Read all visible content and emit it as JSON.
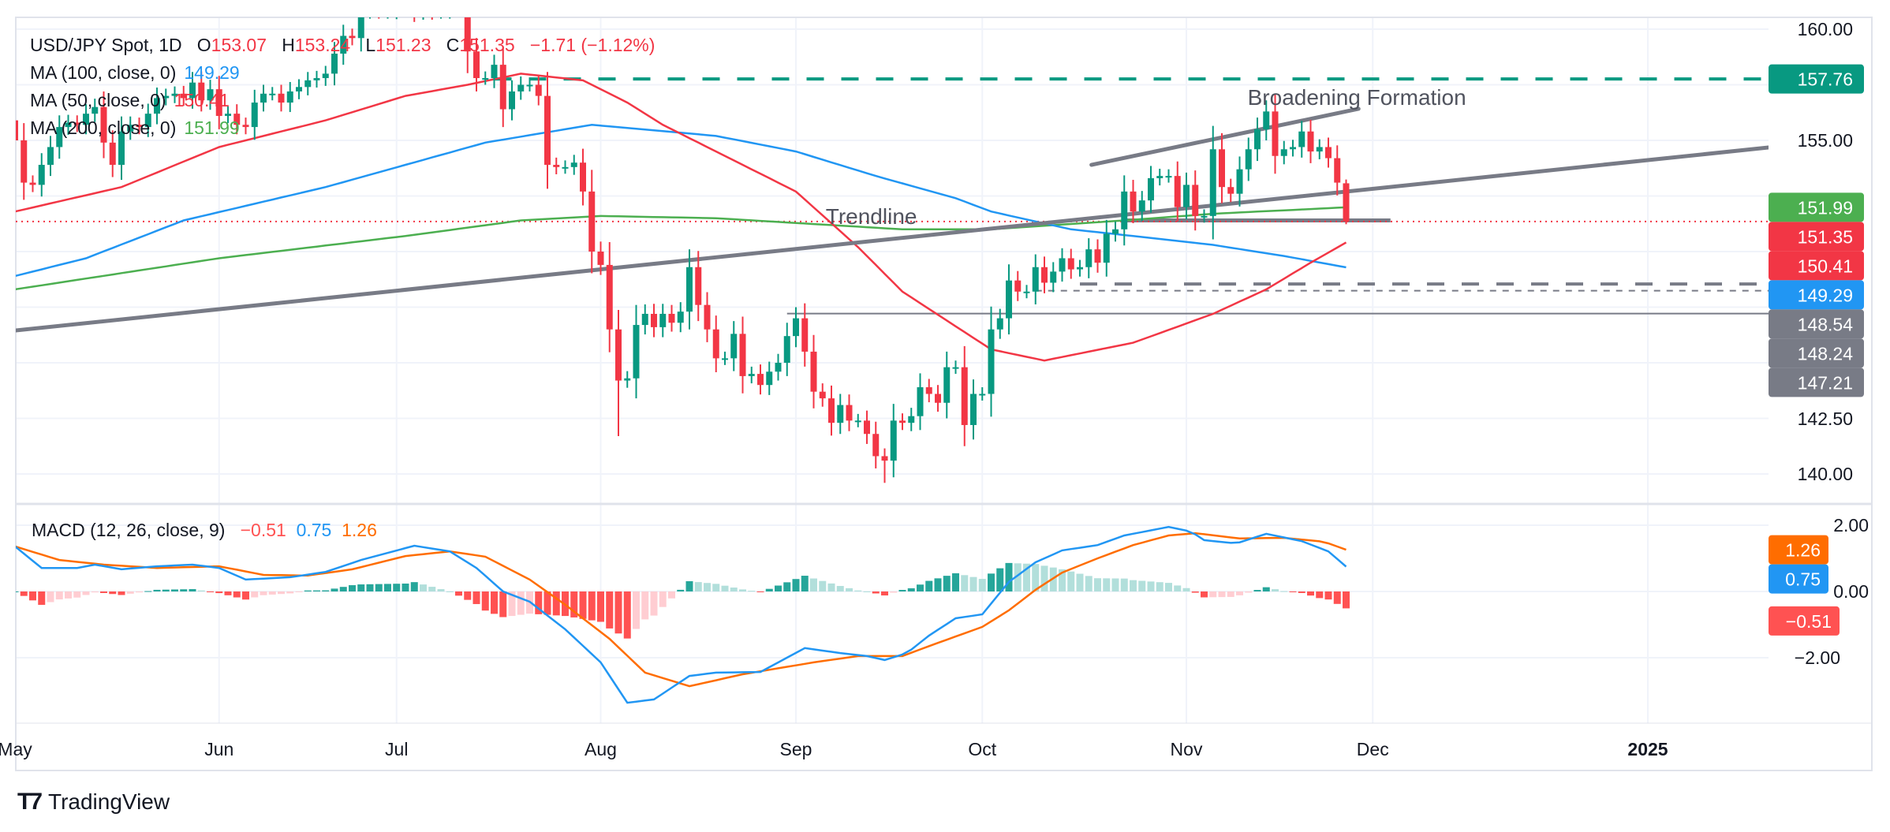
{
  "legend": {
    "symbol": "USD/JPY Spot, 1D",
    "o_label": "O",
    "open": "153.07",
    "h_label": "H",
    "high": "153.24",
    "l_label": "L",
    "low": "151.23",
    "c_label": "C",
    "close": "151.35",
    "change": "−1.71 (−1.12%)",
    "ma": [
      {
        "label": "MA (100, close, 0)",
        "value": "149.29"
      },
      {
        "label": "MA (50, close, 0)",
        "value": "150.41"
      },
      {
        "label": "MA (200, close, 0)",
        "value": "151.99"
      }
    ]
  },
  "macd_legend": {
    "label": "MACD (12, 26, close, 9)",
    "hist": "−0.51",
    "macd": "0.75",
    "signal": "1.26"
  },
  "brand": "TradingView",
  "chart_data": {
    "type": "candlestick",
    "title": "USD/JPY Spot, 1D",
    "colors": {
      "up": "#089981",
      "down": "#f23645",
      "ma50": "#f23645",
      "ma100": "#2196f3",
      "ma200": "#4caf50",
      "macd": "#2196f3",
      "signal": "#ff6d00",
      "drawing": "#787b86",
      "resistance": "#089981"
    },
    "ylim": [
      139.0,
      160.5
    ],
    "first_open": 155.9,
    "last_open": 153.07,
    "closes": [
      155.0,
      153.1,
      153.0,
      153.9,
      154.7,
      155.6,
      155.8,
      155.7,
      156.2,
      156.5,
      154.9,
      153.9,
      155.4,
      155.7,
      155.6,
      156.2,
      156.9,
      157.0,
      157.1,
      156.9,
      157.6,
      156.8,
      157.3,
      156.1,
      156.2,
      155.7,
      155.6,
      156.7,
      157.1,
      157.1,
      156.7,
      157.2,
      157.4,
      157.7,
      157.8,
      158.0,
      158.9,
      159.7,
      159.6,
      160.8,
      160.9,
      160.8,
      160.9,
      161.5,
      161.5,
      160.8,
      161.1,
      160.8,
      160.9,
      161.4,
      161.7,
      159.0,
      157.8,
      157.8,
      158.4,
      156.4,
      157.2,
      157.5,
      157.5,
      157.0,
      153.9,
      153.8,
      153.8,
      154.0,
      152.7,
      150.0,
      149.4,
      146.5,
      144.2,
      144.3,
      146.7,
      147.2,
      146.6,
      147.2,
      146.8,
      147.3,
      149.3,
      147.6,
      146.5,
      145.2,
      145.2,
      146.3,
      144.4,
      144.5,
      144.0,
      144.6,
      145.0,
      146.2,
      147.0,
      145.5,
      143.7,
      143.4,
      142.3,
      143.1,
      142.4,
      142.4,
      141.8,
      140.8,
      140.6,
      142.4,
      142.3,
      142.6,
      143.9,
      143.6,
      143.2,
      144.8,
      144.8,
      142.2,
      143.6,
      143.6,
      146.5,
      147.0,
      148.7,
      148.2,
      148.2,
      149.3,
      148.6,
      149.1,
      149.7,
      149.2,
      149.3,
      150.1,
      149.5,
      150.8,
      151.0,
      152.7,
      151.8,
      152.3,
      153.3,
      153.4,
      153.4,
      152.0,
      153.0,
      151.6,
      151.6,
      154.6,
      152.9,
      152.6,
      153.7,
      154.6,
      155.5,
      156.3,
      154.3,
      154.6,
      154.7,
      155.4,
      154.5,
      154.7,
      154.2,
      153.1,
      151.35
    ],
    "extremes": [
      {
        "i": 0,
        "high": 157.8
      },
      {
        "i": 68,
        "low": 141.7
      },
      {
        "i": 98,
        "low": 139.6
      },
      {
        "i": 150,
        "high": 153.24,
        "low": 151.23
      }
    ],
    "ma50": [
      [
        0,
        151.8
      ],
      [
        12,
        152.9
      ],
      [
        23,
        154.7
      ],
      [
        35,
        155.9
      ],
      [
        44,
        157.0
      ],
      [
        51,
        157.5
      ],
      [
        57,
        158.0
      ],
      [
        64,
        157.7
      ],
      [
        69,
        156.7
      ],
      [
        73,
        155.7
      ],
      [
        88,
        152.7
      ],
      [
        95,
        150.2
      ],
      [
        100,
        148.2
      ],
      [
        110,
        145.6
      ],
      [
        116,
        145.1
      ],
      [
        126,
        145.9
      ],
      [
        135,
        147.2
      ],
      [
        141,
        148.3
      ],
      [
        146,
        149.5
      ],
      [
        150,
        150.41
      ]
    ],
    "ma100": [
      [
        0,
        148.9
      ],
      [
        8,
        149.7
      ],
      [
        19,
        151.4
      ],
      [
        35,
        152.9
      ],
      [
        44,
        153.9
      ],
      [
        53,
        154.9
      ],
      [
        65,
        155.7
      ],
      [
        79,
        155.2
      ],
      [
        88,
        154.5
      ],
      [
        97,
        153.4
      ],
      [
        106,
        152.4
      ],
      [
        110,
        151.8
      ],
      [
        119,
        151.0
      ],
      [
        126,
        150.7
      ],
      [
        135,
        150.3
      ],
      [
        143,
        149.8
      ],
      [
        150,
        149.29
      ]
    ],
    "ma200": [
      [
        0,
        148.3
      ],
      [
        23,
        149.7
      ],
      [
        44,
        150.7
      ],
      [
        57,
        151.4
      ],
      [
        66,
        151.6
      ],
      [
        79,
        151.5
      ],
      [
        100,
        151.0
      ],
      [
        110,
        151.0
      ],
      [
        125,
        151.4
      ],
      [
        135,
        151.7
      ],
      [
        150,
        151.99
      ]
    ],
    "macd": [
      [
        0,
        1.36
      ],
      [
        3,
        0.71
      ],
      [
        7,
        0.71
      ],
      [
        9,
        0.81
      ],
      [
        12,
        0.67
      ],
      [
        16,
        0.76
      ],
      [
        20,
        0.81
      ],
      [
        23,
        0.71
      ],
      [
        26,
        0.36
      ],
      [
        31,
        0.43
      ],
      [
        35,
        0.59
      ],
      [
        39,
        0.95
      ],
      [
        45,
        1.38
      ],
      [
        49,
        1.21
      ],
      [
        52,
        0.71
      ],
      [
        55,
        0.0
      ],
      [
        58,
        -0.31
      ],
      [
        62,
        -1.14
      ],
      [
        66,
        -2.14
      ],
      [
        69,
        -3.36
      ],
      [
        72,
        -3.26
      ],
      [
        76,
        -2.55
      ],
      [
        79,
        -2.45
      ],
      [
        84,
        -2.43
      ],
      [
        89,
        -1.71
      ],
      [
        93,
        -1.86
      ],
      [
        96,
        -1.95
      ],
      [
        98,
        -2.07
      ],
      [
        100.5,
        -1.86
      ],
      [
        103,
        -1.33
      ],
      [
        106,
        -0.81
      ],
      [
        109,
        -0.69
      ],
      [
        112,
        0.29
      ],
      [
        115,
        0.88
      ],
      [
        118,
        1.24
      ],
      [
        122,
        1.4
      ],
      [
        125,
        1.69
      ],
      [
        130,
        1.95
      ],
      [
        132.5,
        1.81
      ],
      [
        134,
        1.55
      ],
      [
        137.6,
        1.45
      ],
      [
        141,
        1.74
      ],
      [
        145,
        1.52
      ],
      [
        148,
        1.21
      ],
      [
        150,
        0.75
      ]
    ],
    "signal": [
      [
        0,
        1.36
      ],
      [
        5,
        0.95
      ],
      [
        10,
        0.81
      ],
      [
        16,
        0.71
      ],
      [
        23,
        0.76
      ],
      [
        28,
        0.5
      ],
      [
        33,
        0.48
      ],
      [
        38,
        0.67
      ],
      [
        44,
        1.07
      ],
      [
        49,
        1.21
      ],
      [
        53,
        1.05
      ],
      [
        58,
        0.36
      ],
      [
        62,
        -0.4
      ],
      [
        67,
        -1.43
      ],
      [
        71,
        -2.45
      ],
      [
        76,
        -2.86
      ],
      [
        82,
        -2.5
      ],
      [
        90,
        -2.14
      ],
      [
        95,
        -1.95
      ],
      [
        100,
        -1.95
      ],
      [
        103,
        -1.65
      ],
      [
        106,
        -1.36
      ],
      [
        109,
        -1.07
      ],
      [
        112,
        -0.57
      ],
      [
        115,
        0.05
      ],
      [
        118,
        0.57
      ],
      [
        122,
        1.0
      ],
      [
        126,
        1.4
      ],
      [
        130,
        1.69
      ],
      [
        133,
        1.76
      ],
      [
        138,
        1.6
      ],
      [
        143,
        1.62
      ],
      [
        147.5,
        1.5
      ],
      [
        150,
        1.26
      ]
    ],
    "levels": [
      {
        "price": 157.76,
        "from": 54,
        "style": "dashed-green",
        "label": "157.76"
      },
      {
        "price": 148.54,
        "from": 120,
        "style": "dashed-gray-thick",
        "label": "148.54"
      },
      {
        "price": 148.24,
        "from": 115,
        "style": "dashed-gray-thin",
        "label": "148.24"
      },
      {
        "price": 147.21,
        "from": 87,
        "style": "solid-gray",
        "label": "147.21"
      },
      {
        "price": 151.4,
        "from": 125,
        "to": 155,
        "style": "support-gray"
      }
    ],
    "trendlines": [
      {
        "name": "trendline",
        "points": [
          [
            0,
            146.45
          ],
          [
            197.6,
            154.68
          ]
        ]
      },
      {
        "name": "broadening-upper",
        "points": [
          [
            121.3,
            153.9
          ],
          [
            151.4,
            156.42
          ]
        ]
      }
    ],
    "annotations": [
      "Trendline",
      "Broadening Formation"
    ],
    "price_badges": [
      {
        "value": "157.76",
        "color": "#089981"
      },
      {
        "value": "151.99",
        "color": "#4caf50"
      },
      {
        "value": "151.35",
        "color": "#f23645"
      },
      {
        "value": "150.41",
        "color": "#f23645"
      },
      {
        "value": "149.29",
        "color": "#2196f3"
      },
      {
        "value": "148.54",
        "color": "#787b86"
      },
      {
        "value": "148.24",
        "color": "#787b86"
      },
      {
        "value": "147.21",
        "color": "#787b86"
      }
    ],
    "macd_badges": [
      {
        "value": "1.26",
        "color": "#ff6d00"
      },
      {
        "value": "0.75",
        "color": "#2196f3"
      },
      {
        "value": "−0.51",
        "color": "#ff5252"
      }
    ],
    "y_ticks": [
      "160.00",
      "155.00",
      "142.50",
      "140.00"
    ],
    "macd_ticks": [
      "2.00",
      "0.00",
      "−2.00"
    ],
    "x_ticks": [
      {
        "label": "May",
        "i": 0
      },
      {
        "label": "Jun",
        "i": 23
      },
      {
        "label": "Jul",
        "i": 43
      },
      {
        "label": "Aug",
        "i": 66
      },
      {
        "label": "Sep",
        "i": 88
      },
      {
        "label": "Oct",
        "i": 109
      },
      {
        "label": "Nov",
        "i": 132
      },
      {
        "label": "Dec",
        "i": 153
      },
      {
        "label": "2025",
        "i": 184
      }
    ]
  }
}
